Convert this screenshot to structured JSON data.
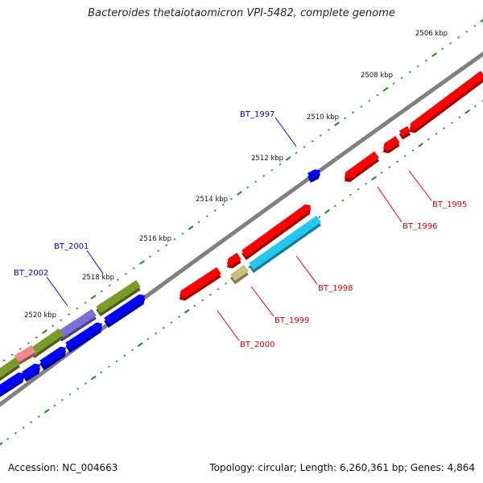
{
  "title": "Bacteroides thetaiotaomicron VPI-5482, complete genome",
  "footer": {
    "accession": "Accession: NC_004663",
    "summary": "Topology: circular; Length: 6,260,361 bp; Genes: 4,864"
  },
  "colors": {
    "backbone": "#808080",
    "tick": "#1a8a1a",
    "kbp_label": "#111111",
    "gene_label_forward": "#0000cc",
    "gene_label_reverse": "#dd0000",
    "red": "#ff0000",
    "blue": "#0000ff",
    "cyan": "#22c8f0",
    "olive": "#7a9a2a",
    "khaki": "#c8c080",
    "purple": "#7a70d8",
    "pink": "#f08a8a"
  },
  "kbp_labels": [
    "2506 kbp",
    "2508 kbp",
    "2510 kbp",
    "2512 kbp",
    "2514 kbp",
    "2516 kbp",
    "2518 kbp",
    "2520 kbp"
  ],
  "gene_labels": [
    {
      "name": "BT_1995",
      "strand": "reverse"
    },
    {
      "name": "BT_1996",
      "strand": "reverse"
    },
    {
      "name": "BT_1997",
      "strand": "forward"
    },
    {
      "name": "BT_1998",
      "strand": "reverse"
    },
    {
      "name": "BT_1999",
      "strand": "reverse"
    },
    {
      "name": "BT_2000",
      "strand": "reverse"
    },
    {
      "name": "BT_2001",
      "strand": "forward"
    },
    {
      "name": "BT_2002",
      "strand": "forward"
    }
  ]
}
